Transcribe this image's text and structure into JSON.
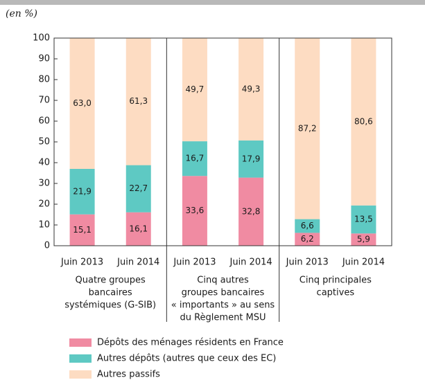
{
  "chart_data": {
    "type": "stacked_bar",
    "unit_label": "(en %)",
    "categories": [
      "Juin 2013",
      "Juin 2014",
      "Juin 2013",
      "Juin 2014",
      "Juin 2013",
      "Juin 2014"
    ],
    "groups": [
      {
        "label": [
          "Quatre groupes",
          "bancaires",
          "systémiques (G-SIB)"
        ]
      },
      {
        "label": [
          "Cinq autres",
          "groupes bancaires",
          "« importants » au sens",
          "du Règlement MSU"
        ]
      },
      {
        "label": [
          "Cinq principales",
          "captives"
        ]
      }
    ],
    "series": [
      {
        "name": "Dépôts des ménages résidents en France",
        "color": "#f08ba2",
        "values": [
          15.1,
          16.1,
          33.6,
          32.8,
          6.2,
          5.9
        ],
        "value_labels": [
          "15,1",
          "16,1",
          "33,6",
          "32,8",
          "6,2",
          "5,9"
        ]
      },
      {
        "name": "Autres dépôts (autres que ceux des EC)",
        "color": "#5ec9c3",
        "values": [
          21.9,
          22.7,
          16.7,
          17.9,
          6.6,
          13.5
        ],
        "value_labels": [
          "21,9",
          "22,7",
          "16,7",
          "17,9",
          "6,6",
          "13,5"
        ]
      },
      {
        "name": "Autres passifs",
        "color": "#fddcc2",
        "values": [
          63.0,
          61.3,
          49.7,
          49.3,
          87.2,
          80.6
        ],
        "value_labels": [
          "63,0",
          "61,3",
          "49,7",
          "49,3",
          "87,2",
          "80,6"
        ]
      }
    ],
    "ylim": [
      0,
      100
    ],
    "yticks": [
      0,
      10,
      20,
      30,
      40,
      50,
      60,
      70,
      80,
      90,
      100
    ]
  }
}
